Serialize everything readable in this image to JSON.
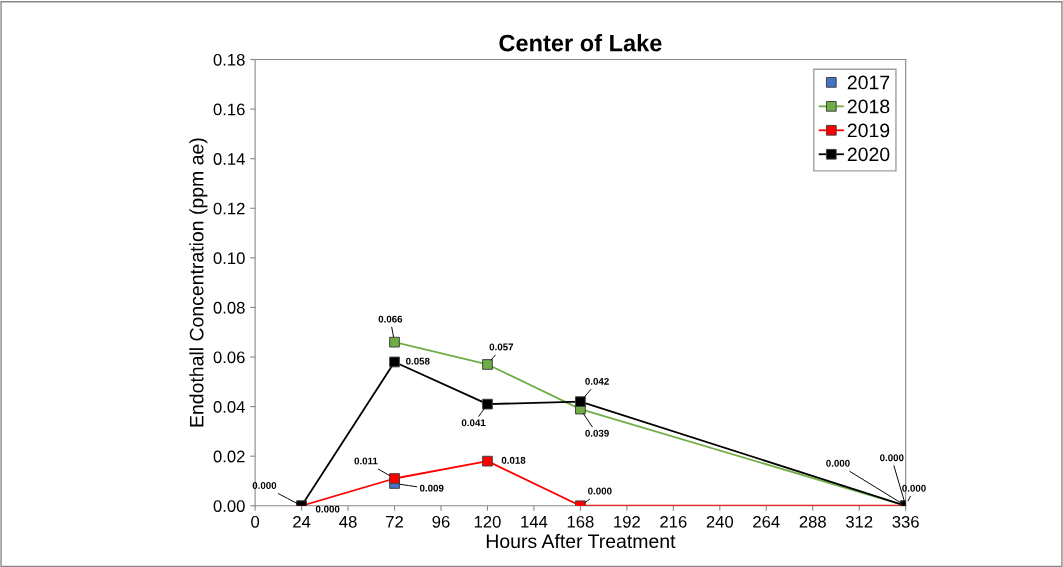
{
  "chart_data": {
    "type": "line",
    "title": "Center of Lake",
    "xlabel": "Hours After Treatment",
    "ylabel": "Endothall Concentration (ppm ae)",
    "xlim": [
      0,
      336
    ],
    "xticks": [
      0,
      24,
      48,
      72,
      96,
      120,
      144,
      168,
      192,
      216,
      240,
      264,
      288,
      312,
      336
    ],
    "ylim": [
      0,
      0.18
    ],
    "yticks": [
      {
        "value": 0,
        "label": "0.00"
      },
      {
        "value": 0.02,
        "label": "0.02"
      },
      {
        "value": 0.04,
        "label": "0.04"
      },
      {
        "value": 0.06,
        "label": "0.06"
      },
      {
        "value": 0.08,
        "label": "0.08"
      },
      {
        "value": 0.1,
        "label": "0.10"
      },
      {
        "value": 0.12,
        "label": "0.12"
      },
      {
        "value": 0.14,
        "label": "0.14"
      },
      {
        "value": 0.16,
        "label": "0.16"
      },
      {
        "value": 0.18,
        "label": "0.18"
      }
    ],
    "marker": "square",
    "legend": "top right",
    "grid": false,
    "series": [
      {
        "name": "2017",
        "type": "scatter",
        "color": "#4472c4",
        "x": [
          72
        ],
        "values": [
          0.009
        ],
        "value_labels": [
          "0.009"
        ]
      },
      {
        "name": "2018",
        "color": "#70ad47",
        "x": [
          72,
          120,
          168,
          336
        ],
        "values": [
          0.066,
          0.057,
          0.039,
          0.0
        ],
        "value_labels": [
          "0.066",
          "0.057",
          "0.039",
          "0.000"
        ]
      },
      {
        "name": "2019",
        "color": "#ff0000",
        "x": [
          24,
          72,
          120,
          168,
          336
        ],
        "values": [
          0.0,
          0.011,
          0.018,
          0.0,
          0.0
        ],
        "value_labels": [
          "0.000",
          "0.011",
          "0.018",
          "0.000",
          "0.000"
        ]
      },
      {
        "name": "2020",
        "color": "#000000",
        "x": [
          24,
          72,
          120,
          168,
          336
        ],
        "values": [
          0.0,
          0.058,
          0.041,
          0.042,
          0.0
        ],
        "value_labels": [
          "0.000",
          "0.058",
          "0.041",
          "0.042",
          "0.000"
        ]
      }
    ]
  }
}
